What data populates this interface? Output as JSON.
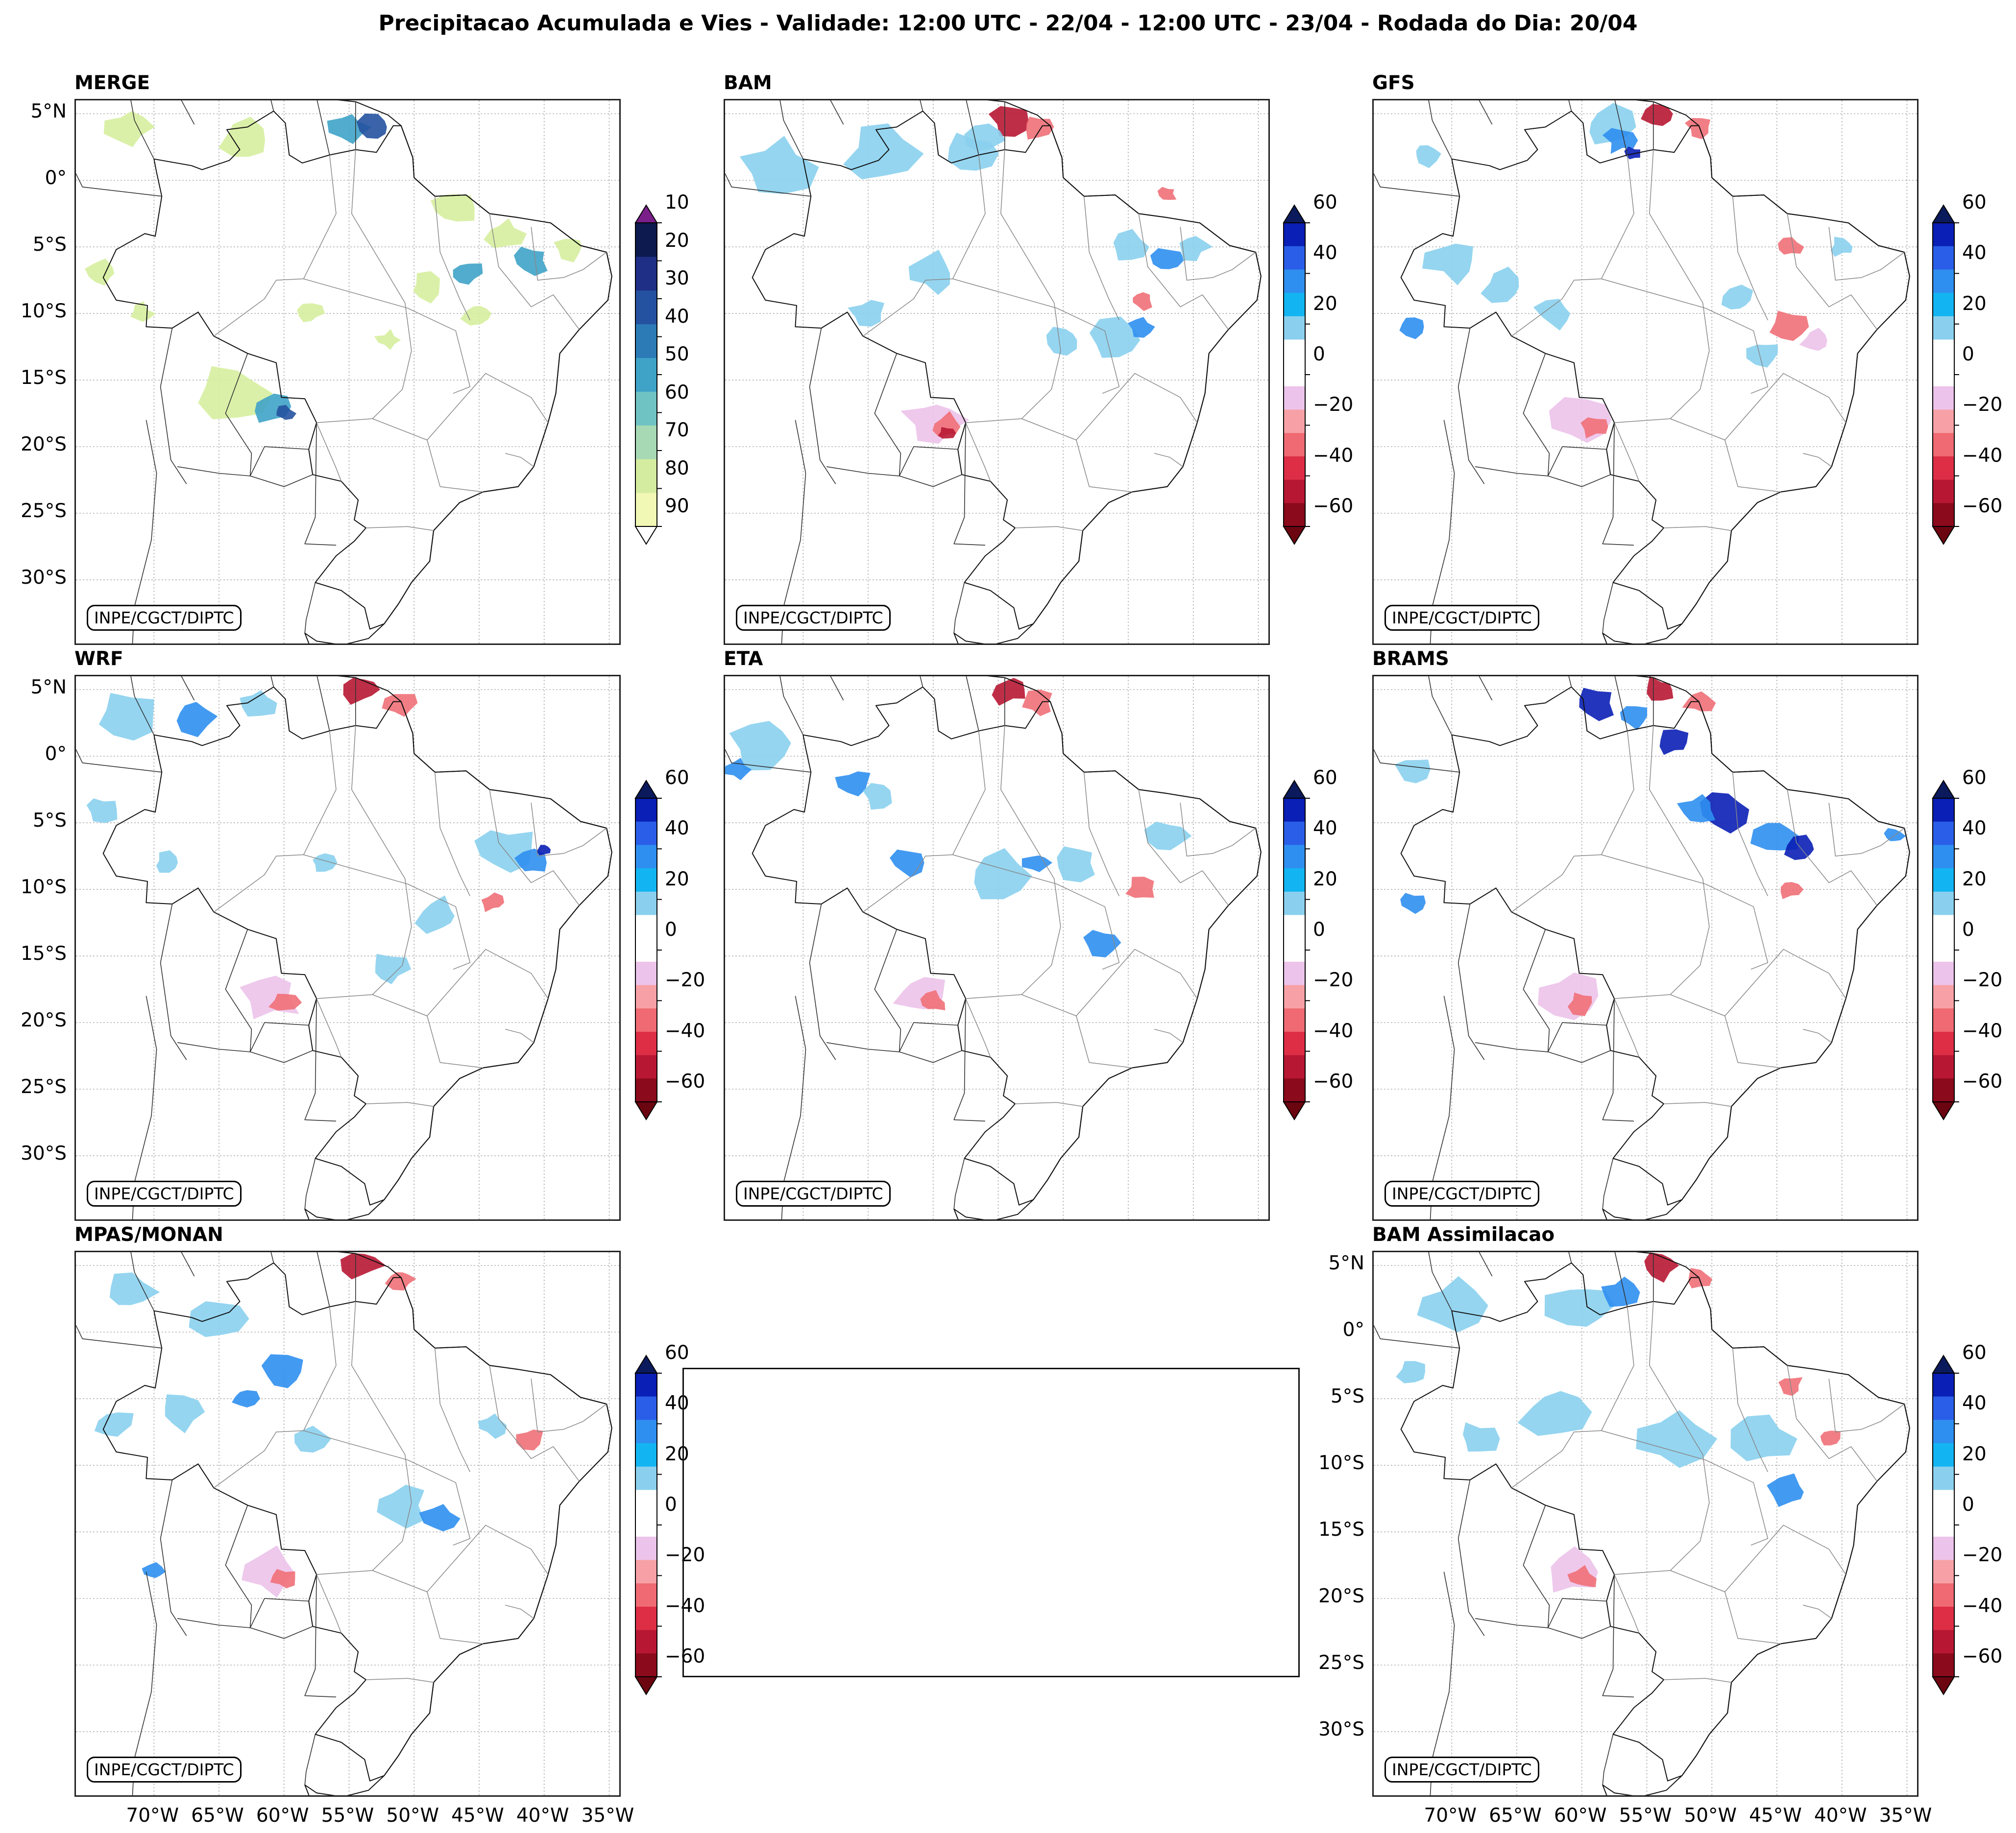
{
  "suptitle": "Precipitacao Acumulada e Vies - Validade: 12:00 UTC - 22/04 - 12:00 UTC - 23/04 - Rodada do Dia: 20/04",
  "credit": "INPE/CGCT/DIPTC",
  "lat_labels": [
    "5°N",
    "0°",
    "5°S",
    "10°S",
    "15°S",
    "20°S",
    "25°S",
    "30°S"
  ],
  "lon_labels": [
    "70°W",
    "65°W",
    "60°W",
    "55°W",
    "50°W",
    "45°W",
    "40°W",
    "35°W"
  ],
  "panels": [
    {
      "id": "merge",
      "title": "MERGE",
      "kind": "precip"
    },
    {
      "id": "bam",
      "title": "BAM",
      "kind": "bias"
    },
    {
      "id": "gfs",
      "title": "GFS",
      "kind": "bias"
    },
    {
      "id": "wrf",
      "title": "WRF",
      "kind": "bias"
    },
    {
      "id": "eta",
      "title": "ETA",
      "kind": "bias"
    },
    {
      "id": "brams",
      "title": "BRAMS",
      "kind": "bias"
    },
    {
      "id": "mpas",
      "title": "MPAS/MONAN",
      "kind": "bias"
    },
    {
      "id": "bamassim",
      "title": "BAM Assimilacao",
      "kind": "bias"
    }
  ],
  "colorbar_precip": {
    "levels": [
      "10",
      "20",
      "30",
      "40",
      "50",
      "60",
      "70",
      "80",
      "90"
    ],
    "colors": [
      "#f1f7b4",
      "#d4ec9f",
      "#a7dab4",
      "#6fc3c3",
      "#3fa3c8",
      "#2c7bb6",
      "#2552a0",
      "#1f2f86",
      "#0c1a4f"
    ],
    "over": "#7a1f8a",
    "under": "#ffffff"
  },
  "colorbar_bias": {
    "levels": [
      "60",
      "40",
      "20",
      "0",
      "−20",
      "−40",
      "−60"
    ],
    "colors": [
      "#0a1fb5",
      "#2a5ee8",
      "#2f8ff0",
      "#12b5f2",
      "#8ad0ee",
      "#ffffff",
      "#ffffff",
      "#ecc3ea",
      "#f7a1a6",
      "#ef6a72",
      "#dd2e46",
      "#b81733",
      "#8b0a1c"
    ],
    "over": "#0b1a5c",
    "under": "#6b0510"
  },
  "blob_colors": {
    "light_green": "#d6ee9e",
    "teal": "#3fa3c8",
    "navy": "#2552a0",
    "light_blue": "#8ad0ee",
    "mid_blue": "#2f8ff0",
    "deep_blue": "#0a1fb5",
    "pink": "#ecc3ea",
    "salmon": "#f07078",
    "crimson": "#b81733"
  }
}
